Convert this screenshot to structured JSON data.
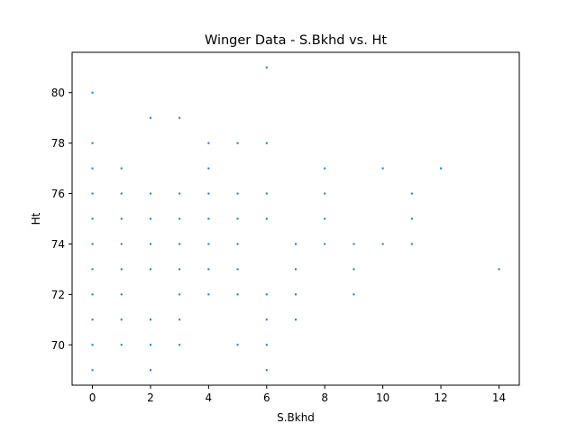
{
  "chart_data": {
    "type": "scatter",
    "title": "Winger Data - S.Bkhd vs. Ht",
    "xlabel": "S.Bkhd",
    "ylabel": "Ht",
    "xlim": [
      -0.7,
      14.7
    ],
    "ylim": [
      68.4,
      81.6
    ],
    "xticks": [
      0,
      2,
      4,
      6,
      8,
      10,
      12,
      14
    ],
    "yticks": [
      70,
      72,
      74,
      76,
      78,
      80
    ],
    "grid": false,
    "legend": "none",
    "marker_color": "#1f77b4",
    "points": [
      {
        "x": 0,
        "y": 69
      },
      {
        "x": 0,
        "y": 70
      },
      {
        "x": 0,
        "y": 71
      },
      {
        "x": 0,
        "y": 72
      },
      {
        "x": 0,
        "y": 73
      },
      {
        "x": 0,
        "y": 74
      },
      {
        "x": 0,
        "y": 75
      },
      {
        "x": 0,
        "y": 76
      },
      {
        "x": 0,
        "y": 77
      },
      {
        "x": 0,
        "y": 78
      },
      {
        "x": 0,
        "y": 80
      },
      {
        "x": 1,
        "y": 70
      },
      {
        "x": 1,
        "y": 71
      },
      {
        "x": 1,
        "y": 72
      },
      {
        "x": 1,
        "y": 73
      },
      {
        "x": 1,
        "y": 74
      },
      {
        "x": 1,
        "y": 75
      },
      {
        "x": 1,
        "y": 76
      },
      {
        "x": 1,
        "y": 77
      },
      {
        "x": 2,
        "y": 69
      },
      {
        "x": 2,
        "y": 70
      },
      {
        "x": 2,
        "y": 71
      },
      {
        "x": 2,
        "y": 73
      },
      {
        "x": 2,
        "y": 74
      },
      {
        "x": 2,
        "y": 75
      },
      {
        "x": 2,
        "y": 76
      },
      {
        "x": 2,
        "y": 79
      },
      {
        "x": 3,
        "y": 70
      },
      {
        "x": 3,
        "y": 71
      },
      {
        "x": 3,
        "y": 72
      },
      {
        "x": 3,
        "y": 73
      },
      {
        "x": 3,
        "y": 74
      },
      {
        "x": 3,
        "y": 75
      },
      {
        "x": 3,
        "y": 76
      },
      {
        "x": 3,
        "y": 79
      },
      {
        "x": 4,
        "y": 72
      },
      {
        "x": 4,
        "y": 73
      },
      {
        "x": 4,
        "y": 74
      },
      {
        "x": 4,
        "y": 75
      },
      {
        "x": 4,
        "y": 76
      },
      {
        "x": 4,
        "y": 77
      },
      {
        "x": 4,
        "y": 78
      },
      {
        "x": 5,
        "y": 70
      },
      {
        "x": 5,
        "y": 72
      },
      {
        "x": 5,
        "y": 73
      },
      {
        "x": 5,
        "y": 74
      },
      {
        "x": 5,
        "y": 75
      },
      {
        "x": 5,
        "y": 76
      },
      {
        "x": 5,
        "y": 78
      },
      {
        "x": 6,
        "y": 69
      },
      {
        "x": 6,
        "y": 70
      },
      {
        "x": 6,
        "y": 71
      },
      {
        "x": 6,
        "y": 72
      },
      {
        "x": 6,
        "y": 75
      },
      {
        "x": 6,
        "y": 76
      },
      {
        "x": 6,
        "y": 78
      },
      {
        "x": 6,
        "y": 81
      },
      {
        "x": 7,
        "y": 71
      },
      {
        "x": 7,
        "y": 72
      },
      {
        "x": 7,
        "y": 73
      },
      {
        "x": 7,
        "y": 74
      },
      {
        "x": 8,
        "y": 74
      },
      {
        "x": 8,
        "y": 75
      },
      {
        "x": 8,
        "y": 76
      },
      {
        "x": 8,
        "y": 77
      },
      {
        "x": 9,
        "y": 72
      },
      {
        "x": 9,
        "y": 73
      },
      {
        "x": 9,
        "y": 74
      },
      {
        "x": 10,
        "y": 74
      },
      {
        "x": 10,
        "y": 77
      },
      {
        "x": 11,
        "y": 74
      },
      {
        "x": 11,
        "y": 75
      },
      {
        "x": 11,
        "y": 76
      },
      {
        "x": 12,
        "y": 77
      },
      {
        "x": 14,
        "y": 73
      }
    ]
  }
}
